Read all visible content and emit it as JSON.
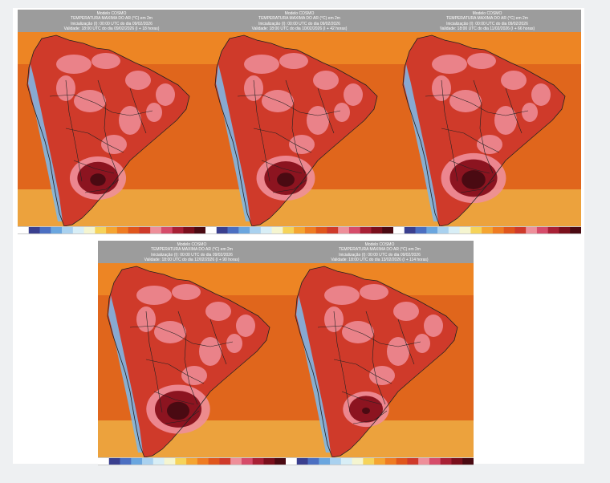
{
  "figure": {
    "panels": [
      {
        "model": "Modelo COSMO",
        "variable": "TEMPERATURA MÁXIMA DO AR (°C) em 2m",
        "init": "Inicialização (I): 00:00 UTC do dia 09/02/2026",
        "valid": "Validade: 18:00 UTC do dia 09/02/2026 (I + 18 horas)",
        "hot_level": 0.72
      },
      {
        "model": "Modelo COSMO",
        "variable": "TEMPERATURA MÁXIMA DO AR (°C) em 2m",
        "init": "Inicialização (I): 00:00 UTC do dia 09/02/2026",
        "valid": "Validade: 18:00 UTC do dia 10/02/2026 (I + 42 horas)",
        "hot_level": 0.78
      },
      {
        "model": "Modelo COSMO",
        "variable": "TEMPERATURA MÁXIMA DO AR (°C) em 2m",
        "init": "Inicialização (I): 00:00 UTC do dia 09/02/2026",
        "valid": "Validade: 18:00 UTC do dia 11/02/2026 (I + 66 horas)",
        "hot_level": 0.95
      },
      {
        "model": "Modelo COSMO",
        "variable": "TEMPERATURA MÁXIMA DO AR (°C) em 2m",
        "init": "Inicialização (I): 00:00 UTC do dia 09/02/2026",
        "valid": "Validade: 18:00 UTC do dia 12/02/2026 (I + 90 horas)",
        "hot_level": 0.92
      },
      {
        "model": "Modelo COSMO",
        "variable": "TEMPERATURA MÁXIMA DO AR (°C) em 2m",
        "init": "Inicialização (I): 00:00 UTC do dia 09/02/2026",
        "valid": "Validade: 18:00 UTC do dia 13/02/2026 (I + 114 horas)",
        "hot_level": 0.45
      }
    ],
    "colors": {
      "ocean": "#e0661c",
      "ocean_far": "#f59a2a",
      "land": "#cf3a2a",
      "warm_pink": "#ee8f9a",
      "hot": "#8c1420",
      "hottest": "#4a0a12",
      "andes_cool": "#7fb6e3",
      "southern_yellow": "#f6d35a",
      "borders": "#222222",
      "header_bg": "#9c9c9c",
      "page_bg": "#eef0f2"
    },
    "colorbar": [
      "#ffffff",
      "#3a3f8f",
      "#4b6fc2",
      "#6aa6df",
      "#a9d1ef",
      "#d8eef6",
      "#f5f5d0",
      "#f6d35a",
      "#f5a531",
      "#ef7c22",
      "#e0561c",
      "#cf3a2a",
      "#ee8f9a",
      "#d64c6a",
      "#a82035",
      "#7a0f1c",
      "#4a0a12"
    ]
  }
}
